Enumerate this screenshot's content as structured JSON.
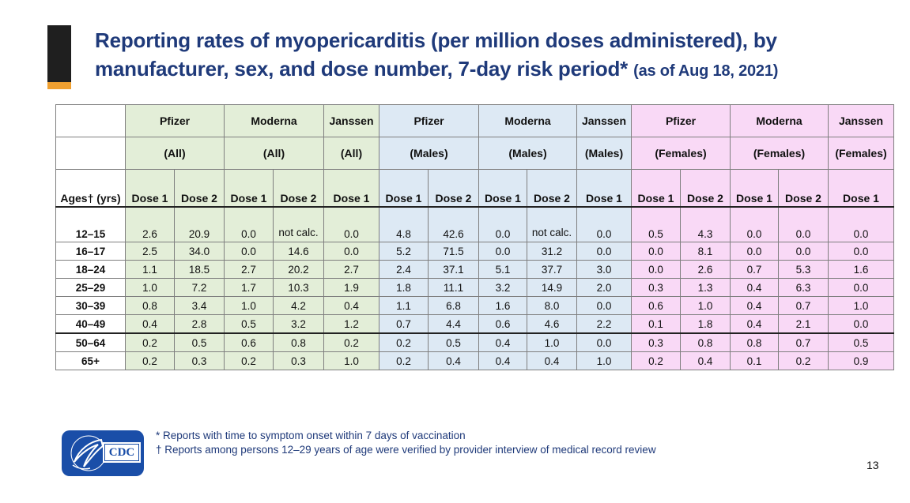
{
  "title": {
    "main": "Reporting rates of myopericarditis (per million doses administered), by manufacturer, sex, and dose number, 7-day risk period*",
    "date": "(as of Aug 18, 2021)"
  },
  "table": {
    "header_row1": [
      "Pfizer",
      "Moderna",
      "Janssen",
      "Pfizer",
      "Moderna",
      "Janssen",
      "Pfizer",
      "Moderna",
      "Janssen"
    ],
    "header_row2": [
      "(All)",
      "(All)",
      "(All)",
      "(Males)",
      "(Males)",
      "(Males)",
      "(Females)",
      "(Females)",
      "(Females)"
    ],
    "ages_label": "Ages† (yrs)",
    "dose_headers": [
      "Dose 1",
      "Dose 2",
      "Dose 1",
      "Dose 2",
      "Dose 1",
      "Dose 1",
      "Dose 2",
      "Dose 1",
      "Dose 2",
      "Dose 1",
      "Dose 1",
      "Dose 2",
      "Dose 1",
      "Dose 2",
      "Dose 1"
    ],
    "rows": [
      {
        "age": "12–15",
        "values": [
          "2.6",
          "20.9",
          "0.0",
          "not calc.",
          "0.0",
          "4.8",
          "42.6",
          "0.0",
          "not calc.",
          "0.0",
          "0.5",
          "4.3",
          "0.0",
          "0.0",
          "0.0"
        ]
      },
      {
        "age": "16–17",
        "values": [
          "2.5",
          "34.0",
          "0.0",
          "14.6",
          "0.0",
          "5.2",
          "71.5",
          "0.0",
          "31.2",
          "0.0",
          "0.0",
          "8.1",
          "0.0",
          "0.0",
          "0.0"
        ]
      },
      {
        "age": "18–24",
        "values": [
          "1.1",
          "18.5",
          "2.7",
          "20.2",
          "2.7",
          "2.4",
          "37.1",
          "5.1",
          "37.7",
          "3.0",
          "0.0",
          "2.6",
          "0.7",
          "5.3",
          "1.6"
        ]
      },
      {
        "age": "25–29",
        "values": [
          "1.0",
          "7.2",
          "1.7",
          "10.3",
          "1.9",
          "1.8",
          "11.1",
          "3.2",
          "14.9",
          "2.0",
          "0.3",
          "1.3",
          "0.4",
          "6.3",
          "0.0"
        ]
      },
      {
        "age": "30–39",
        "values": [
          "0.8",
          "3.4",
          "1.0",
          "4.2",
          "0.4",
          "1.1",
          "6.8",
          "1.6",
          "8.0",
          "0.0",
          "0.6",
          "1.0",
          "0.4",
          "0.7",
          "1.0"
        ]
      },
      {
        "age": "40–49",
        "values": [
          "0.4",
          "2.8",
          "0.5",
          "3.2",
          "1.2",
          "0.7",
          "4.4",
          "0.6",
          "4.6",
          "2.2",
          "0.1",
          "1.8",
          "0.4",
          "2.1",
          "0.0"
        ]
      },
      {
        "age": "50–64",
        "values": [
          "0.2",
          "0.5",
          "0.6",
          "0.8",
          "0.2",
          "0.2",
          "0.5",
          "0.4",
          "1.0",
          "0.0",
          "0.3",
          "0.8",
          "0.8",
          "0.7",
          "0.5"
        ]
      },
      {
        "age": "65+",
        "values": [
          "0.2",
          "0.3",
          "0.2",
          "0.3",
          "1.0",
          "0.2",
          "0.4",
          "0.4",
          "0.4",
          "1.0",
          "0.2",
          "0.4",
          "0.1",
          "0.2",
          "0.9"
        ]
      }
    ]
  },
  "colors": {
    "title": "#1f3a7a",
    "all_group": "#e3eed8",
    "males_group": "#dde9f4",
    "females_group": "#f9d9f6",
    "accent_bar": "#1f1f1f",
    "accent_orange": "#f0a030",
    "cdc_blue": "#1a4ea8"
  },
  "footer": {
    "logo_text": "CDC",
    "logo_icon": "hhs-eagle-icon",
    "note1": "* Reports with time to symptom onset within 7 days of vaccination",
    "note2": "† Reports among persons 12–29 years of age were verified by provider interview of medical record review",
    "page_number": "13"
  }
}
